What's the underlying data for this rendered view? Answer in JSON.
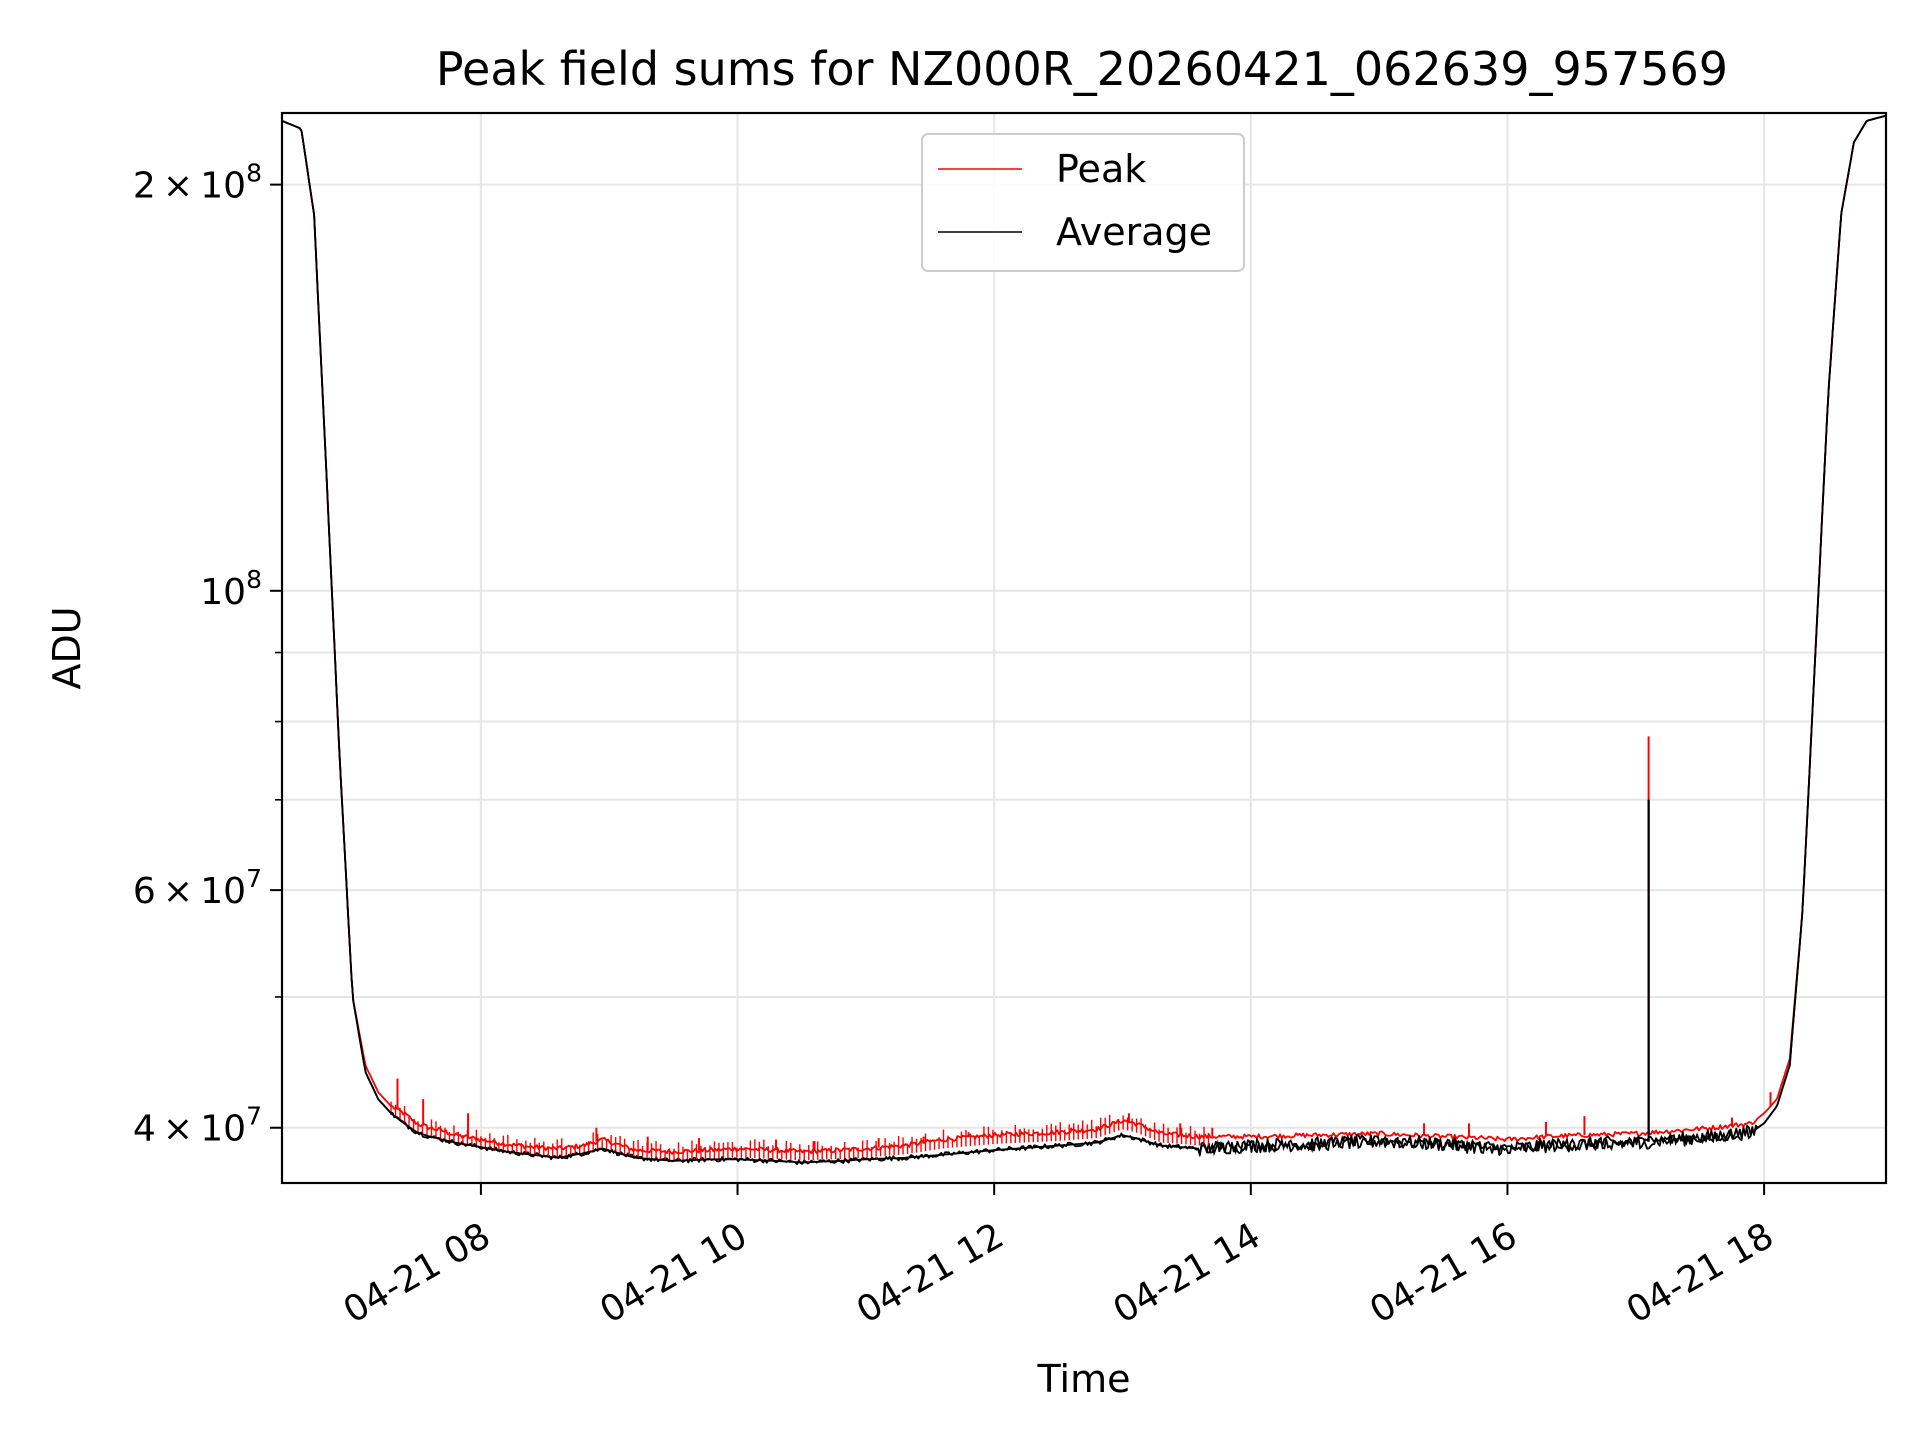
{
  "chart_data": {
    "type": "line",
    "title": "Peak field sums for NZ000R_20260421_062639_957569",
    "xlabel": "Time",
    "ylabel": "ADU",
    "yscale": "log",
    "xlim_hours": [
      6.45,
      18.95
    ],
    "ylim": [
      36400000,
      226000000
    ],
    "grid": true,
    "legend_position": "upper center",
    "x_ticks": [
      {
        "hour": 8,
        "label": "04-21 08"
      },
      {
        "hour": 10,
        "label": "04-21 10"
      },
      {
        "hour": 12,
        "label": "04-21 12"
      },
      {
        "hour": 14,
        "label": "04-21 14"
      },
      {
        "hour": 16,
        "label": "04-21 16"
      },
      {
        "hour": 18,
        "label": "04-21 18"
      }
    ],
    "y_major_ticks": [
      {
        "value": 40000000,
        "mant": "4",
        "exp": "7"
      },
      {
        "value": 60000000,
        "mant": "6",
        "exp": "7"
      },
      {
        "value": 100000000,
        "mant": "",
        "exp": "8"
      },
      {
        "value": 200000000,
        "mant": "2",
        "exp": "8"
      }
    ],
    "y_minor_ticks": [
      50000000,
      70000000,
      80000000,
      90000000
    ],
    "times_hours": [
      6.45,
      6.6,
      6.7,
      6.8,
      6.9,
      7.0,
      7.1,
      7.2,
      7.3,
      7.4,
      7.5,
      7.6,
      7.7,
      7.8,
      8.0,
      8.2,
      8.4,
      8.6,
      8.8,
      8.95,
      9.2,
      9.5,
      9.8,
      10.0,
      10.3,
      10.5,
      10.8,
      11.0,
      11.3,
      11.6,
      12.0,
      12.5,
      12.8,
      13.0,
      13.1,
      13.3,
      13.6,
      14.0,
      14.5,
      15.0,
      15.5,
      15.8,
      16.0,
      16.3,
      16.6,
      17.0,
      17.3,
      17.6,
      17.9,
      18.0,
      18.1,
      18.2,
      18.3,
      18.4,
      18.5,
      18.6,
      18.7,
      18.8,
      18.95
    ],
    "series": [
      {
        "name": "Peak",
        "color": "#ff0000",
        "values": [
          223000000,
          220000000,
          190000000,
          120000000,
          75000000,
          50000000,
          44500000,
          42500000,
          41500000,
          41000000,
          40300000,
          40000000,
          39800000,
          39500000,
          39200000,
          38900000,
          38700000,
          38600000,
          38800000,
          39200000,
          38500000,
          38400000,
          38500000,
          38600000,
          38500000,
          38400000,
          38500000,
          38600000,
          38800000,
          39200000,
          39500000,
          39700000,
          39900000,
          40500000,
          40300000,
          39600000,
          39400000,
          39400000,
          39500000,
          39600000,
          39400000,
          39300000,
          39200000,
          39400000,
          39500000,
          39600000,
          39800000,
          40000000,
          40300000,
          41000000,
          42000000,
          45000000,
          58000000,
          90000000,
          140000000,
          190000000,
          215000000,
          223000000,
          225000000
        ],
        "spikes": [
          [
            7.35,
            43500000
          ],
          [
            7.55,
            42000000
          ],
          [
            7.9,
            41000000
          ],
          [
            8.9,
            40000000
          ],
          [
            9.3,
            39400000
          ],
          [
            9.7,
            39300000
          ],
          [
            10.3,
            39200000
          ],
          [
            10.6,
            39100000
          ],
          [
            11.1,
            39300000
          ],
          [
            11.45,
            39400000
          ],
          [
            11.8,
            39700000
          ],
          [
            12.2,
            39900000
          ],
          [
            12.6,
            40000000
          ],
          [
            13.05,
            41000000
          ],
          [
            13.45,
            40300000
          ],
          [
            13.7,
            40000000
          ],
          [
            15.35,
            40300000
          ],
          [
            15.7,
            40300000
          ],
          [
            16.3,
            40400000
          ],
          [
            16.6,
            40800000
          ],
          [
            17.1,
            78000000
          ],
          [
            17.75,
            40700000
          ],
          [
            18.05,
            42500000
          ]
        ]
      },
      {
        "name": "Average",
        "color": "#000000",
        "values": [
          223000000,
          220000000,
          190000000,
          120000000,
          75000000,
          50000000,
          44000000,
          42000000,
          41000000,
          40300000,
          39700000,
          39400000,
          39200000,
          39000000,
          38700000,
          38400000,
          38200000,
          38000000,
          38300000,
          38600000,
          38000000,
          37800000,
          37900000,
          37900000,
          37800000,
          37700000,
          37800000,
          37900000,
          38000000,
          38200000,
          38500000,
          38800000,
          39000000,
          39500000,
          39300000,
          38800000,
          38600000,
          38800000,
          38900000,
          39100000,
          38900000,
          38700000,
          38600000,
          38800000,
          38900000,
          39000000,
          39200000,
          39400000,
          39700000,
          40300000,
          41500000,
          44500000,
          58000000,
          90000000,
          140000000,
          190000000,
          215000000,
          223000000,
          225000000
        ],
        "spikes": [
          [
            17.1,
            70000000
          ]
        ]
      }
    ]
  }
}
